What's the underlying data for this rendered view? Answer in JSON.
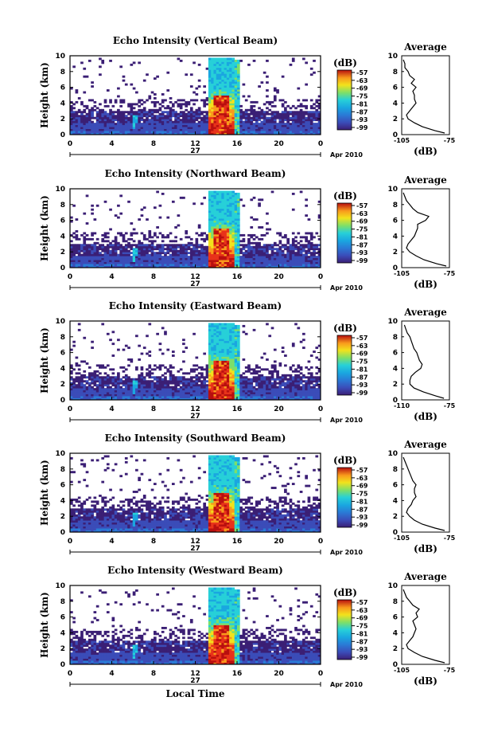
{
  "figure": {
    "ylabel": "Height (km)",
    "xlabel": "Local Time",
    "date_label": "Apr 2010",
    "day_label": "27",
    "colorbar_unit": "(dB)",
    "avg_title": "Average",
    "avg_unit": "(dB)"
  },
  "colors": {
    "scale": [
      "#3b1f75",
      "#3b4cb8",
      "#2a7bd6",
      "#1aa6e0",
      "#27d0d8",
      "#7ddf6a",
      "#f2e21c",
      "#f99a1c",
      "#e8321a",
      "#b80f0f"
    ]
  },
  "chart_data": [
    {
      "type": "heatmap",
      "title": "Echo Intensity (Vertical Beam)",
      "ylabel": "Height (km)",
      "xlim": [
        0,
        24
      ],
      "ylim": [
        0,
        10
      ],
      "x_ticks": [
        "0",
        "4",
        "8",
        "12",
        "16",
        "20",
        "0"
      ],
      "y_ticks": [
        "0",
        "2",
        "4",
        "6",
        "8",
        "10"
      ],
      "colorbar": {
        "label": "(dB)",
        "ticks": [
          "-57",
          "-63",
          "-69",
          "-75",
          "-81",
          "-87",
          "-93",
          "-99"
        ]
      },
      "average_profile": {
        "title": "Average",
        "xlabel": "(dB)",
        "xlim": [
          -105,
          -75
        ],
        "x_ticks": [
          "-105",
          "-75"
        ],
        "y_ticks": [
          "0",
          "2",
          "4",
          "6",
          "8",
          "10"
        ],
        "height_km": [
          0.2,
          0.5,
          1.0,
          1.5,
          2.0,
          2.5,
          3.0,
          3.5,
          4.0,
          4.5,
          5.0,
          5.5,
          6.0,
          6.5,
          7.0,
          7.5,
          8.0,
          8.5,
          9.0,
          9.5
        ],
        "db": [
          -78,
          -84,
          -92,
          -97,
          -101,
          -102,
          -100,
          -98,
          -96,
          -97,
          -97,
          -98,
          -96,
          -99,
          -97,
          -100,
          -101,
          -103,
          -103,
          -104
        ]
      }
    },
    {
      "type": "heatmap",
      "title": "Echo Intensity (Northward Beam)",
      "ylabel": "Height (km)",
      "xlim": [
        0,
        24
      ],
      "ylim": [
        0,
        10
      ],
      "x_ticks": [
        "0",
        "4",
        "8",
        "12",
        "16",
        "20",
        "0"
      ],
      "y_ticks": [
        "0",
        "2",
        "4",
        "6",
        "8",
        "10"
      ],
      "colorbar": {
        "label": "(dB)",
        "ticks": [
          "-57",
          "-63",
          "-69",
          "-75",
          "-81",
          "-87",
          "-93",
          "-99"
        ]
      },
      "average_profile": {
        "title": "Average",
        "xlabel": "(dB)",
        "xlim": [
          -105,
          -75
        ],
        "x_ticks": [
          "-105",
          "-75"
        ],
        "y_ticks": [
          "0",
          "2",
          "4",
          "6",
          "8",
          "10"
        ],
        "height_km": [
          0.2,
          0.5,
          1.0,
          1.5,
          2.0,
          2.5,
          3.0,
          3.5,
          4.0,
          4.5,
          5.0,
          5.5,
          6.0,
          6.5,
          7.0,
          7.5,
          8.0,
          8.5,
          9.0,
          9.5
        ],
        "db": [
          -77,
          -83,
          -91,
          -96,
          -100,
          -102,
          -101,
          -99,
          -97,
          -96,
          -95,
          -95,
          -90,
          -88,
          -95,
          -98,
          -100,
          -102,
          -103,
          -104
        ]
      }
    },
    {
      "type": "heatmap",
      "title": "Echo Intensity (Eastward Beam)",
      "ylabel": "Height (km)",
      "xlim": [
        0,
        24
      ],
      "ylim": [
        0,
        10
      ],
      "x_ticks": [
        "0",
        "4",
        "8",
        "12",
        "16",
        "20",
        "0"
      ],
      "y_ticks": [
        "0",
        "2",
        "4",
        "6",
        "8",
        "10"
      ],
      "colorbar": {
        "label": "(dB)",
        "ticks": [
          "-57",
          "-63",
          "-69",
          "-75",
          "-81",
          "-87",
          "-93",
          "-99"
        ]
      },
      "average_profile": {
        "title": "Average",
        "xlabel": "(dB)",
        "xlim": [
          -110,
          -75
        ],
        "x_ticks": [
          "-110",
          "-75"
        ],
        "y_ticks": [
          "0",
          "2",
          "4",
          "6",
          "8",
          "10"
        ],
        "height_km": [
          0.2,
          0.5,
          1.0,
          1.5,
          2.0,
          2.5,
          3.0,
          3.5,
          4.0,
          4.5,
          5.0,
          5.5,
          6.0,
          6.5,
          7.0,
          7.5,
          8.0,
          8.5,
          9.0,
          9.5
        ],
        "db": [
          -79,
          -85,
          -94,
          -101,
          -104,
          -104,
          -103,
          -100,
          -96,
          -95,
          -97,
          -98,
          -99,
          -101,
          -102,
          -103,
          -104,
          -106,
          -107,
          -108
        ]
      }
    },
    {
      "type": "heatmap",
      "title": "Echo Intensity (Southward Beam)",
      "ylabel": "Height (km)",
      "xlim": [
        0,
        24
      ],
      "ylim": [
        0,
        10
      ],
      "x_ticks": [
        "0",
        "4",
        "8",
        "12",
        "16",
        "20",
        "0"
      ],
      "y_ticks": [
        "0",
        "2",
        "4",
        "6",
        "8",
        "10"
      ],
      "colorbar": {
        "label": "(dB)",
        "ticks": [
          "-57",
          "-63",
          "-69",
          "-75",
          "-81",
          "-87",
          "-93",
          "-99"
        ]
      },
      "average_profile": {
        "title": "Average",
        "xlabel": "(dB)",
        "xlim": [
          -105,
          -75
        ],
        "x_ticks": [
          "-105",
          "-75"
        ],
        "y_ticks": [
          "0",
          "2",
          "4",
          "6",
          "8",
          "10"
        ],
        "height_km": [
          0.2,
          0.5,
          1.0,
          1.5,
          2.0,
          2.5,
          3.0,
          3.5,
          4.0,
          4.5,
          5.0,
          5.5,
          6.0,
          6.5,
          7.0,
          7.5,
          8.0,
          8.5,
          9.0,
          9.5
        ],
        "db": [
          -78,
          -84,
          -92,
          -97,
          -100,
          -102,
          -101,
          -99,
          -98,
          -96,
          -97,
          -97,
          -96,
          -98,
          -99,
          -100,
          -101,
          -102,
          -103,
          -104
        ]
      }
    },
    {
      "type": "heatmap",
      "title": "Echo Intensity (Westward Beam)",
      "ylabel": "Height (km)",
      "xlim": [
        0,
        24
      ],
      "ylim": [
        0,
        10
      ],
      "x_ticks": [
        "0",
        "4",
        "8",
        "12",
        "16",
        "20",
        "0"
      ],
      "y_ticks": [
        "0",
        "2",
        "4",
        "6",
        "8",
        "10"
      ],
      "colorbar": {
        "label": "(dB)",
        "ticks": [
          "-57",
          "-63",
          "-69",
          "-75",
          "-81",
          "-87",
          "-93",
          "-99"
        ]
      },
      "average_profile": {
        "title": "Average",
        "xlabel": "(dB)",
        "xlim": [
          -105,
          -75
        ],
        "x_ticks": [
          "-105",
          "-75"
        ],
        "y_ticks": [
          "0",
          "2",
          "4",
          "6",
          "8",
          "10"
        ],
        "height_km": [
          0.2,
          0.5,
          1.0,
          1.5,
          2.0,
          2.5,
          3.0,
          3.5,
          4.0,
          4.5,
          5.0,
          5.5,
          6.0,
          6.5,
          7.0,
          7.5,
          8.0,
          8.5,
          9.0,
          9.5
        ],
        "db": [
          -78,
          -84,
          -92,
          -97,
          -101,
          -102,
          -100,
          -98,
          -97,
          -96,
          -97,
          -98,
          -95,
          -96,
          -94,
          -98,
          -100,
          -102,
          -103,
          -104
        ]
      }
    }
  ]
}
